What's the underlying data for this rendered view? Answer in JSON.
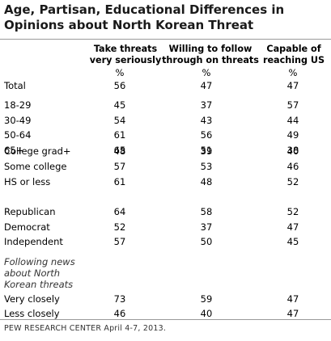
{
  "title": [
    "Age, Partisan, Educational Differences in",
    "Opinions about North Korean Threat"
  ],
  "chart_data": {
    "type": "table",
    "columns": [
      {
        "header": [
          "Take threats",
          "very seriously"
        ],
        "unit": "%"
      },
      {
        "header": [
          "Willing to follow",
          "through on threats"
        ],
        "unit": "%"
      },
      {
        "header": [
          "Capable of",
          "reaching US"
        ],
        "unit": "%"
      }
    ],
    "groups": [
      {
        "rows": [
          {
            "label": "Total",
            "values": [
              56,
              47,
              47
            ]
          }
        ]
      },
      {
        "rows": [
          {
            "label": "18-29",
            "values": [
              45,
              37,
              57
            ]
          },
          {
            "label": "30-49",
            "values": [
              54,
              43,
              44
            ]
          },
          {
            "label": "50-64",
            "values": [
              61,
              56,
              49
            ]
          },
          {
            "label": "65+",
            "values": [
              65,
              51,
              38
            ]
          }
        ]
      },
      {
        "rows": [
          {
            "label": "College grad+",
            "values": [
              48,
              39,
              40
            ]
          },
          {
            "label": "Some college",
            "values": [
              57,
              53,
              46
            ]
          },
          {
            "label": "HS or less",
            "values": [
              61,
              48,
              52
            ]
          }
        ]
      },
      {
        "rows": [
          {
            "label": "Republican",
            "values": [
              64,
              58,
              52
            ]
          },
          {
            "label": "Democrat",
            "values": [
              52,
              37,
              47
            ]
          },
          {
            "label": "Independent",
            "values": [
              57,
              50,
              45
            ]
          }
        ]
      },
      {
        "subheading": [
          "Following news",
          "about North",
          "Korean threats"
        ],
        "rows": [
          {
            "label": "Very closely",
            "values": [
              73,
              59,
              47
            ]
          },
          {
            "label": "Less closely",
            "values": [
              46,
              40,
              47
            ]
          }
        ]
      }
    ]
  },
  "source": "PEW RESEARCH CENTER April 4-7, 2013."
}
